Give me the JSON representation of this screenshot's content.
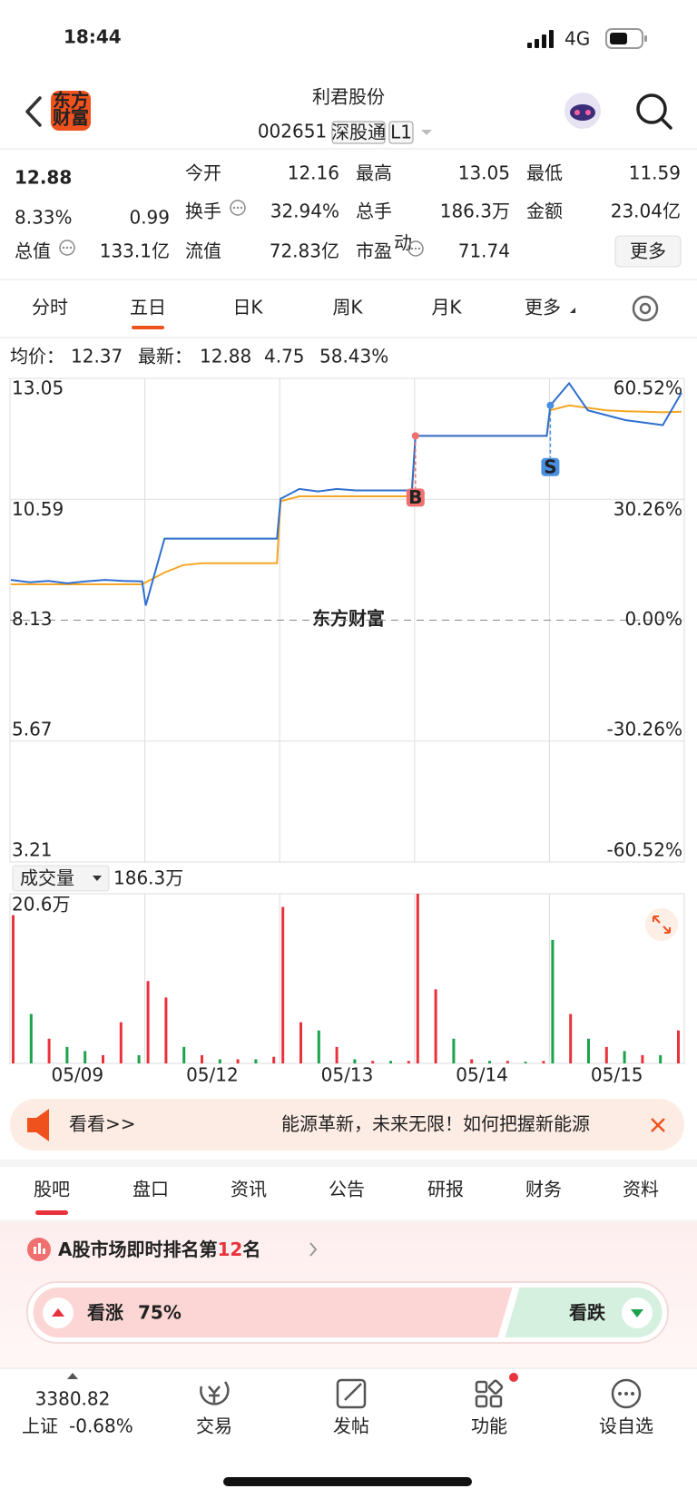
{
  "status": {
    "time": "18:44",
    "network": "4G"
  },
  "header": {
    "logo": [
      "东方",
      "财富"
    ],
    "title": "利君股份",
    "code": "002651",
    "tags": [
      "深股通",
      "L1"
    ]
  },
  "quote": {
    "price": "12.88",
    "change_pct": "8.33%",
    "change": "0.99",
    "fields": [
      {
        "label": "今开",
        "value": "12.16",
        "color": "#e8323c"
      },
      {
        "label": "最高",
        "value": "13.05",
        "color": "#e8323c"
      },
      {
        "label": "最低",
        "value": "11.59",
        "color": "#1aa34a"
      },
      {
        "label": "换手",
        "value": "32.94%"
      },
      {
        "label": "总手",
        "value": "186.3万"
      },
      {
        "label": "金额",
        "value": "23.04亿"
      },
      {
        "label": "总值",
        "value": "133.1亿"
      },
      {
        "label": "流值",
        "value": "72.83亿"
      },
      {
        "label": "市盈",
        "sup": "动",
        "value": "71.74"
      }
    ],
    "more": "更多"
  },
  "tabs": {
    "items": [
      "分时",
      "五日",
      "日K",
      "周K",
      "月K",
      "更多"
    ],
    "active": 1
  },
  "chart_data": [
    {
      "type": "line",
      "watermark": "东方财富",
      "latest_change": "4.75",
      "latest_pct": "58.43%",
      "categories": [
        "05/09",
        "05/12",
        "05/13",
        "05/14",
        "05/15"
      ],
      "series": [
        {
          "name": "最新：",
          "legend_value": "12.88",
          "color": "#2f6fd0",
          "values": [
            [
              8.95,
              8.9,
              8.93,
              8.88,
              8.92,
              8.95,
              8.93,
              8.92
            ],
            [
              8.43,
              9.79,
              9.79,
              9.79,
              9.79,
              9.79,
              9.79,
              9.79
            ],
            [
              10.6,
              10.8,
              10.75,
              10.8,
              10.77,
              10.77,
              10.77,
              10.77
            ],
            [
              11.88,
              11.88,
              11.88,
              11.88,
              11.88,
              11.88,
              11.88,
              11.88
            ],
            [
              12.5,
              12.95,
              12.4,
              12.3,
              12.2,
              12.15,
              12.1,
              12.76
            ]
          ]
        },
        {
          "name": "均价：",
          "legend_value": "12.37",
          "color": "#f5a623",
          "values": [
            [
              8.86,
              8.86,
              8.86,
              8.86,
              8.86,
              8.86,
              8.86,
              8.86
            ],
            [
              8.9,
              9.1,
              9.25,
              9.29,
              9.29,
              9.29,
              9.29,
              9.29
            ],
            [
              10.55,
              10.65,
              10.65,
              10.65,
              10.65,
              10.65,
              10.65,
              10.65
            ],
            [
              11.88,
              11.88,
              11.88,
              11.88,
              11.88,
              11.88,
              11.88,
              11.88
            ],
            [
              12.4,
              12.5,
              12.45,
              12.4,
              12.38,
              12.37,
              12.36,
              12.37
            ]
          ]
        }
      ],
      "markers": [
        null,
        null,
        null,
        "B",
        "S"
      ],
      "ylim": [
        3.21,
        13.05
      ],
      "yticks": [
        13.05,
        10.59,
        8.13,
        5.67,
        3.21
      ],
      "y2lim": [
        -60.52,
        60.52
      ],
      "y2ticks": [
        {
          "value": 60.52,
          "label": "60.52%"
        },
        {
          "value": 30.26,
          "label": "30.26%"
        },
        {
          "value": 0,
          "label": "0.00%"
        },
        {
          "value": -30.26,
          "label": "-30.26%"
        },
        {
          "value": -60.52,
          "label": "-60.52%"
        }
      ]
    },
    {
      "type": "bar",
      "title": "成交量",
      "total": "186.3万",
      "ylim": [
        0,
        20.6
      ],
      "yticks": [
        {
          "value": 20.6,
          "label": "20.6万"
        }
      ],
      "values": [
        [
          18,
          6,
          3,
          2,
          1.5,
          1,
          5,
          1
        ],
        [
          10,
          8,
          2,
          1,
          0.5,
          0.5,
          0.5,
          0.8
        ],
        [
          19,
          5,
          4,
          2,
          0.5,
          0.3,
          0.3,
          0.3
        ],
        [
          20.6,
          9,
          3,
          0.5,
          0.3,
          0.3,
          0.2,
          0.3
        ],
        [
          15,
          6,
          3,
          2,
          1.5,
          1,
          1,
          4
        ]
      ],
      "colors": [
        [
          "#e8323c",
          "#1aa34a",
          "#e8323c",
          "#1aa34a",
          "#1aa34a",
          "#e8323c",
          "#e8323c",
          "#1aa34a"
        ],
        [
          "#e8323c",
          "#e8323c",
          "#1aa34a",
          "#e8323c",
          "#1aa34a",
          "#e8323c",
          "#1aa34a",
          "#e8323c"
        ],
        [
          "#e8323c",
          "#e8323c",
          "#1aa34a",
          "#e8323c",
          "#1aa34a",
          "#e8323c",
          "#1aa34a",
          "#e8323c"
        ],
        [
          "#e8323c",
          "#e8323c",
          "#1aa34a",
          "#e8323c",
          "#1aa34a",
          "#e8323c",
          "#1aa34a",
          "#e8323c"
        ],
        [
          "#1aa34a",
          "#e8323c",
          "#1aa34a",
          "#e8323c",
          "#1aa34a",
          "#e8323c",
          "#1aa34a",
          "#e8323c"
        ]
      ]
    }
  ],
  "banner": {
    "cta": "看看>>",
    "text": "能源革新，未来无限！如何把握新能源"
  },
  "section_tabs": {
    "items": [
      "股吧",
      "盘口",
      "资讯",
      "公告",
      "研报",
      "财务",
      "资料"
    ],
    "active": 0
  },
  "ranking": {
    "prefix": "A股市场即时排名第",
    "rank": "12",
    "suffix": "名"
  },
  "vote": {
    "up_label": "看涨",
    "up_pct": 75,
    "up_pct_label": "75%",
    "down_label": "看跌"
  },
  "nav": {
    "index_value": "3380.82",
    "index_name": "上证",
    "index_change": "-0.68%",
    "items": [
      "交易",
      "发帖",
      "功能",
      "设自选"
    ]
  }
}
